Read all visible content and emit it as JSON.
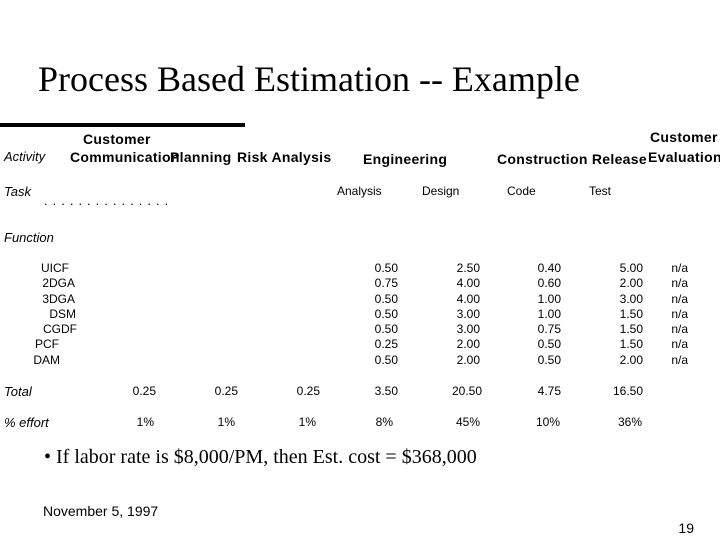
{
  "slide": {
    "title": "Process Based Estimation -- Example",
    "bullet": "If labor rate is $8,000/PM, then Est. cost = $368,000",
    "bullet_marker": "•",
    "date": "November 5, 1997",
    "page_number": "19"
  },
  "table": {
    "activity_label": "Activity",
    "task_label": "Task",
    "function_label": "Function",
    "headers": {
      "customer_comm_1": "Customer",
      "customer_comm_2": "Communication",
      "planning": "Planning",
      "risk": "Risk Analysis",
      "engineering": "Engineering",
      "construction": "Construction Release",
      "customer_eval_1": "Customer",
      "customer_eval_2": "Evaluation"
    },
    "subheaders": {
      "analysis": "Analysis",
      "design": "Design",
      "code": "Code",
      "test": "Test"
    },
    "dots": "...............",
    "functions": [
      "UICF",
      "2DGA",
      "3DGA",
      "DSM",
      "CGDF",
      "PCF",
      "DAM"
    ],
    "analysis": [
      "0.50",
      "0.75",
      "0.50",
      "0.50",
      "0.50",
      "0.25",
      "0.50"
    ],
    "design": [
      "2.50",
      "4.00",
      "4.00",
      "3.00",
      "3.00",
      "2.00",
      "2.00"
    ],
    "code": [
      "0.40",
      "0.60",
      "1.00",
      "1.00",
      "0.75",
      "0.50",
      "0.50"
    ],
    "test": [
      "5.00",
      "2.00",
      "3.00",
      "1.50",
      "1.50",
      "1.50",
      "2.00"
    ],
    "evaluation": [
      "n/a",
      "n/a",
      "n/a",
      "n/a",
      "n/a",
      "n/a",
      "n/a"
    ],
    "total": {
      "label": "Total",
      "values": [
        "0.25",
        "0.25",
        "0.25",
        "3.50",
        "20.50",
        "4.75",
        "16.50"
      ]
    },
    "effort": {
      "label": "% effort",
      "values": [
        "1%",
        "1%",
        "1%",
        "8%",
        "45%",
        "10%",
        "36%"
      ]
    }
  }
}
